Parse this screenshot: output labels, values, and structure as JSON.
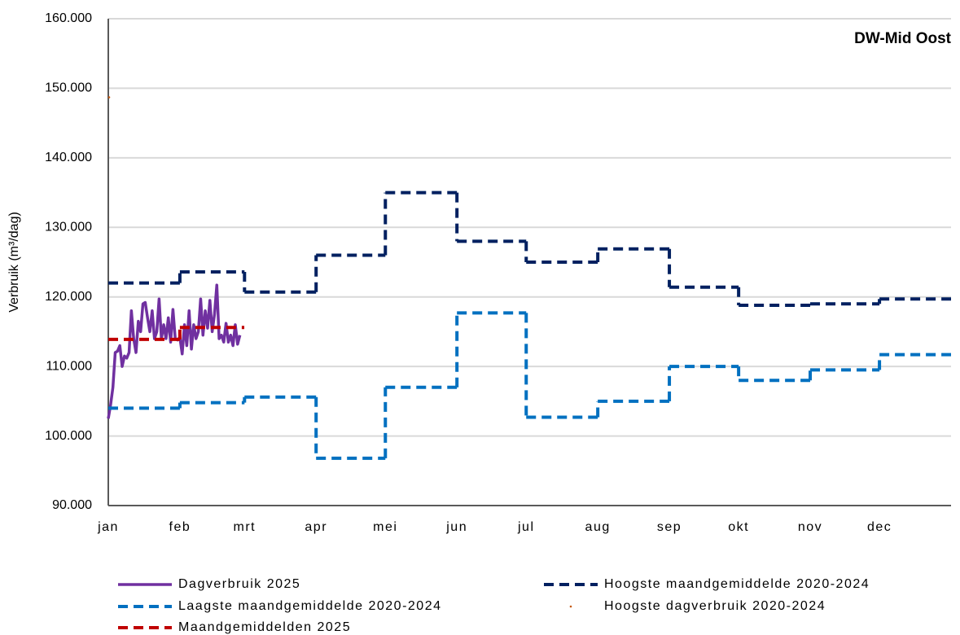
{
  "chart_data": {
    "type": "line",
    "title": "DW-Mid Oost",
    "y_label": "Verbruik (m³/dag)",
    "xlim": [
      0,
      365
    ],
    "ylim": [
      90000,
      160000
    ],
    "yticks": [
      {
        "value": 90000,
        "label": "90.000"
      },
      {
        "value": 100000,
        "label": "100.000"
      },
      {
        "value": 110000,
        "label": "110.000"
      },
      {
        "value": 120000,
        "label": "120.000"
      },
      {
        "value": 130000,
        "label": "130.000"
      },
      {
        "value": 140000,
        "label": "140.000"
      },
      {
        "value": 150000,
        "label": "150.000"
      },
      {
        "value": 160000,
        "label": "160.000"
      }
    ],
    "xticks": [
      {
        "value": 0,
        "label": "jan"
      },
      {
        "value": 31,
        "label": "feb"
      },
      {
        "value": 59,
        "label": "mrt"
      },
      {
        "value": 90,
        "label": "apr"
      },
      {
        "value": 120,
        "label": "mei"
      },
      {
        "value": 151,
        "label": "jun"
      },
      {
        "value": 181,
        "label": "jul"
      },
      {
        "value": 212,
        "label": "aug"
      },
      {
        "value": 243,
        "label": "sep"
      },
      {
        "value": 273,
        "label": "okt"
      },
      {
        "value": 304,
        "label": "nov"
      },
      {
        "value": 334,
        "label": "dec"
      }
    ],
    "grid": true,
    "series": [
      {
        "name": "Dagverbruik 2025",
        "color": "#7030a0",
        "style": "line",
        "x": [
          0,
          1,
          2,
          3,
          4,
          5,
          6,
          7,
          8,
          9,
          10,
          11,
          12,
          13,
          14,
          15,
          16,
          17,
          18,
          19,
          20,
          21,
          22,
          23,
          24,
          25,
          26,
          27,
          28,
          29,
          30,
          31,
          32,
          33,
          34,
          35,
          36,
          37,
          38,
          39,
          40,
          41,
          42,
          43,
          44,
          45,
          46,
          47,
          48,
          49,
          50,
          51,
          52,
          53,
          54,
          55,
          56,
          57
        ],
        "values": [
          102500,
          104500,
          107000,
          112000,
          112200,
          113000,
          110000,
          111500,
          111200,
          112000,
          118000,
          114000,
          112000,
          116500,
          115000,
          119000,
          119200,
          117000,
          115000,
          118000,
          114000,
          115000,
          119700,
          114000,
          116000,
          114000,
          117000,
          113500,
          118200,
          114000,
          113800,
          114200,
          111800,
          116000,
          113000,
          118000,
          112500,
          116000,
          114000,
          115000,
          119700,
          114500,
          118000,
          115500,
          119500,
          115000,
          117500,
          121700,
          114000,
          114500,
          113500,
          116200,
          113500,
          114500,
          113000,
          116000,
          113200,
          114500
        ]
      },
      {
        "name": "Hoogste maandgemiddelde 2020-2024",
        "color": "#002060",
        "style": "step",
        "x": [
          0,
          31,
          59,
          90,
          120,
          151,
          181,
          212,
          243,
          273,
          304,
          334
        ],
        "values": [
          122000,
          123600,
          120700,
          126000,
          135000,
          128000,
          125000,
          126900,
          121400,
          118800,
          119000,
          119700
        ]
      },
      {
        "name": "Laagste maandgemiddelde 2020-2024",
        "color": "#0070c0",
        "style": "step",
        "x": [
          0,
          31,
          59,
          90,
          120,
          151,
          181,
          212,
          243,
          273,
          304,
          334
        ],
        "values": [
          104000,
          104800,
          105600,
          96800,
          107000,
          117700,
          102700,
          105000,
          110000,
          108000,
          109500,
          111700
        ]
      },
      {
        "name": "Hoogste dagverbruik 2020-2024",
        "color": "#c55a11",
        "style": "point",
        "x": [
          0
        ],
        "values": [
          148700
        ]
      },
      {
        "name": "Maandgemiddelden 2025",
        "color": "#c00000",
        "style": "step",
        "x": [
          0,
          31
        ],
        "values": [
          113900,
          115600
        ]
      }
    ]
  }
}
